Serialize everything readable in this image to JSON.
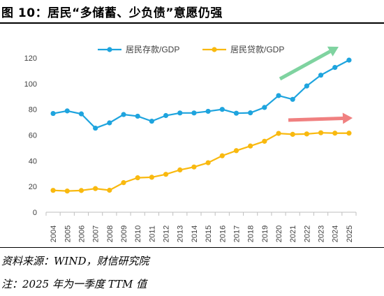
{
  "figure": {
    "title": "图 10：居民“多储蓄、少负债”意愿仍强",
    "source": "资料来源：WIND，财信研究院",
    "note": "注：2025 年为一季度 TTM 值"
  },
  "colors": {
    "deposits": "#1ea4de",
    "loans": "#f9b90f",
    "arrow_green": "#7fd3a0",
    "arrow_red": "#f08080",
    "axis": "#bfbfbf"
  },
  "chart_data": {
    "type": "line",
    "title": "",
    "xlabel": "",
    "ylabel": "",
    "ylim": [
      0,
      120
    ],
    "yticks": [
      0,
      20,
      40,
      60,
      80,
      100,
      120
    ],
    "grid": false,
    "legend_position": "top",
    "categories": [
      "2004",
      "2005",
      "2006",
      "2007",
      "2008",
      "2009",
      "2010",
      "2011",
      "2012",
      "2013",
      "2014",
      "2015",
      "2016",
      "2017",
      "2018",
      "2019",
      "2020",
      "2021",
      "2022",
      "2023",
      "2024",
      "2025"
    ],
    "series": [
      {
        "name": "居民存款/GDP",
        "color": "#1ea4de",
        "values": [
          76.8,
          78.8,
          76.5,
          65.4,
          69.5,
          76.0,
          74.7,
          70.8,
          75.2,
          77.2,
          77.2,
          78.5,
          80.0,
          77.0,
          77.3,
          81.5,
          90.7,
          87.8,
          98.2,
          106.6,
          112.6,
          118.3
        ]
      },
      {
        "name": "居民贷款/GDP",
        "color": "#f9b90f",
        "values": [
          17.0,
          16.5,
          16.9,
          18.4,
          17.1,
          23.0,
          26.8,
          27.2,
          29.5,
          32.9,
          35.2,
          38.5,
          43.9,
          47.9,
          51.5,
          55.2,
          61.3,
          60.6,
          60.9,
          61.8,
          61.5,
          61.5
        ]
      }
    ]
  }
}
